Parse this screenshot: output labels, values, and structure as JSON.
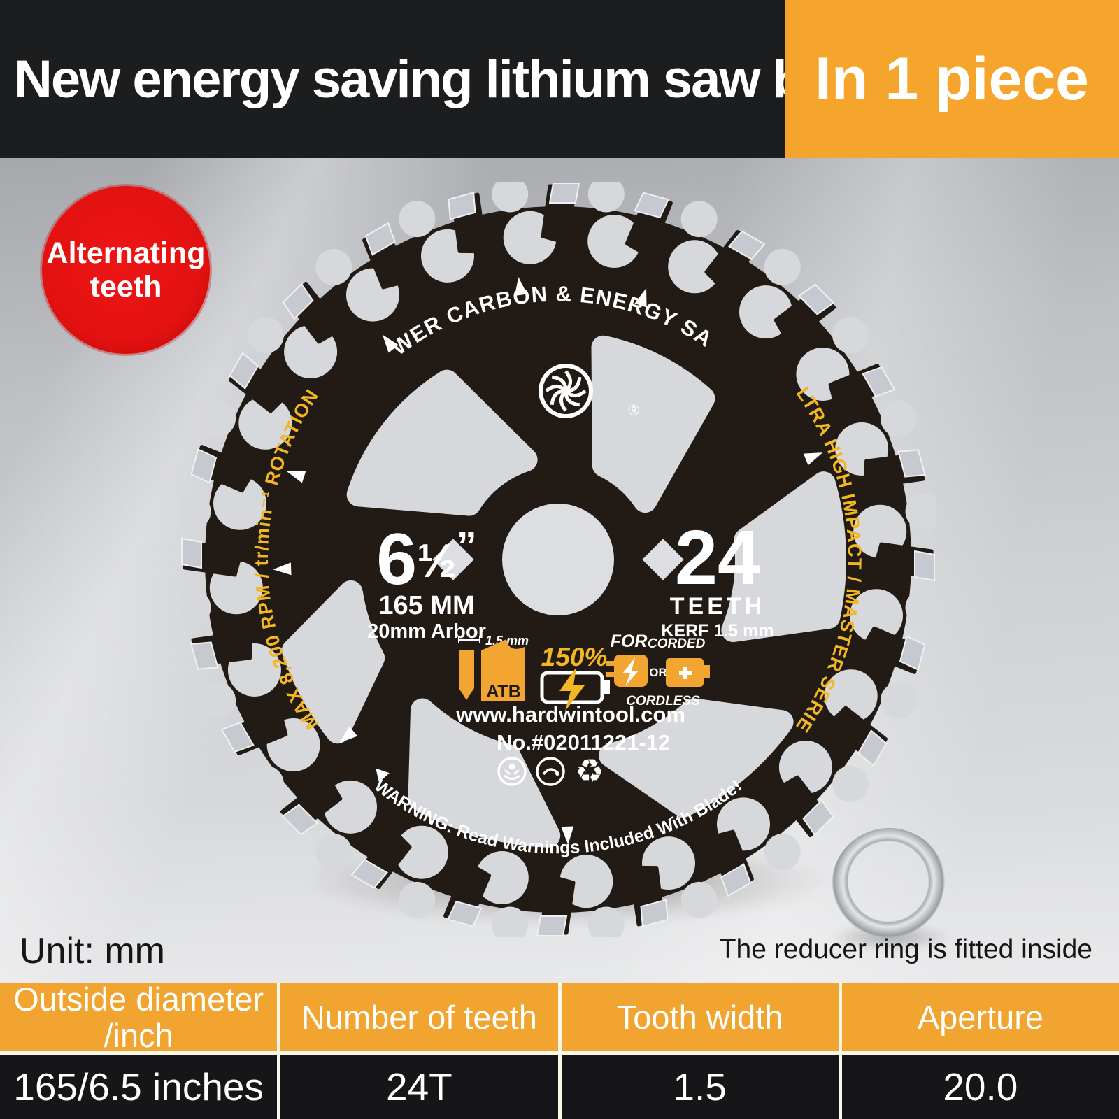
{
  "header": {
    "title": "New energy saving lithium saw blade",
    "badge": "In 1 piece",
    "banner_bg": "#1c1d1f",
    "accent": "#f5a52b"
  },
  "sticker": {
    "line1": "Alternating",
    "line2": "teeth",
    "color": "#e51414"
  },
  "blade": {
    "arc_top": "LOWER CARBON & ENERGY SAVER",
    "arc_left": "MAX 8,200 RPM / tr/min⁻¹ ROTATION",
    "arc_right": "ULTRA HIGH IMPACT / MASTER SERIES",
    "arc_warning": "WARNING: Read Warnings Included With Blade!",
    "size_main": "6",
    "size_frac": "½",
    "size_quote": "”",
    "size_mm": "165 MM",
    "arbor": "20mm Arbor",
    "teeth_count": "24",
    "teeth_label": "TEETH",
    "kerf": "KERF 1.5 mm",
    "kerf_icon_label": "1.5 mm",
    "atb_label": "ATB",
    "efficiency": "150%",
    "power_for": "FOR",
    "power_corded": "CORDED",
    "power_or": "OR",
    "power_cordless": "CORDLESS",
    "website": "www.hardwintool.com",
    "model_no": "No.#02011221-12",
    "registered": "®",
    "yellow": "#f2b722",
    "body_color": "#221b15"
  },
  "notes": {
    "unit": "Unit: mm",
    "reducer": "The reducer ring is fitted inside"
  },
  "spec_table": {
    "header_bg": "#f1a42f",
    "row_bg": "#161618",
    "columns": [
      {
        "header": "Outside diameter",
        "header2": "/inch",
        "value": "165/6.5 inches"
      },
      {
        "header": "Number of teeth",
        "header2": "",
        "value": "24T"
      },
      {
        "header": "Tooth width",
        "header2": "",
        "value": "1.5"
      },
      {
        "header": "Aperture",
        "header2": "",
        "value": "20.0"
      }
    ]
  }
}
